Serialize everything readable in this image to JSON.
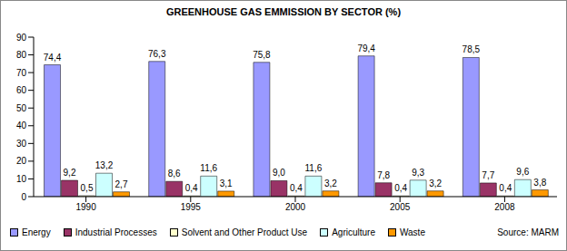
{
  "chart_data": {
    "type": "bar",
    "title": "GREENHOUSE GAS EMMISSION BY SECTOR (%)",
    "annotation": "Source: MARM",
    "categories": [
      "1990",
      "1995",
      "2000",
      "2005",
      "2008"
    ],
    "series": [
      {
        "name": "Energy",
        "color": "#9999ff",
        "values": [
          74.4,
          76.3,
          75.8,
          79.4,
          78.5
        ],
        "value_labels": [
          "74,4",
          "76,3",
          "75,8",
          "79,4",
          "78,5"
        ]
      },
      {
        "name": "Industrial Processes",
        "color": "#993366",
        "values": [
          9.2,
          8.6,
          9.0,
          7.8,
          7.7
        ],
        "value_labels": [
          "9,2",
          "8,6",
          "9,0",
          "7,8",
          "7,7"
        ]
      },
      {
        "name": "Solvent and Other Product Use",
        "color": "#ffffcc",
        "values": [
          0.5,
          0.4,
          0.4,
          0.4,
          0.4
        ],
        "value_labels": [
          "0,5",
          "0,4",
          "0,4",
          "0,4",
          "0,4"
        ]
      },
      {
        "name": "Agriculture",
        "color": "#ccffff",
        "values": [
          13.2,
          11.6,
          11.6,
          9.3,
          9.6
        ],
        "value_labels": [
          "13,2",
          "11,6",
          "11,6",
          "9,3",
          "9,6"
        ]
      },
      {
        "name": "Waste",
        "color": "#ff9900",
        "values": [
          2.7,
          3.1,
          3.2,
          3.2,
          3.8
        ],
        "value_labels": [
          "2,7",
          "3,1",
          "3,2",
          "3,2",
          "3,8"
        ]
      }
    ],
    "ylim": [
      0,
      90
    ],
    "yticks": [
      0,
      10,
      20,
      30,
      40,
      50,
      60,
      70,
      80,
      90
    ],
    "grid": false,
    "legend": "bottom",
    "data_labels": true
  }
}
